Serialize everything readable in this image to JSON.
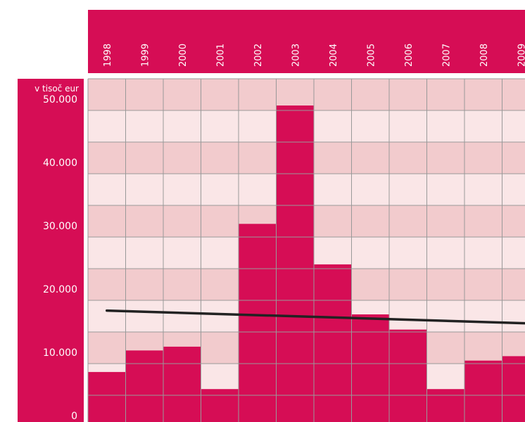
{
  "chart_data": {
    "type": "bar",
    "unit_label": "v tisoč eur",
    "categories": [
      "1998",
      "1999",
      "2000",
      "2001",
      "2002",
      "2003",
      "2004",
      "2005",
      "2006",
      "2007",
      "2008",
      "2009"
    ],
    "values": [
      7900,
      11300,
      11900,
      5200,
      31300,
      50000,
      24900,
      17000,
      14600,
      5200,
      9700,
      10400
    ],
    "trend_line": {
      "start": 17600,
      "end": 15600
    },
    "y_ticks": [
      "0",
      "10.000",
      "20.000",
      "30.000",
      "40.000",
      "50.000"
    ],
    "y_tick_values": [
      0,
      10000,
      20000,
      30000,
      40000,
      50000
    ],
    "ylim": [
      0,
      55000
    ],
    "grid": true,
    "colors": {
      "bar": "#d60d55",
      "band_dark": "#f2cbcd",
      "band_light": "#fae6e7",
      "grid": "#999999",
      "header": "#d60d55",
      "trend": "#222222"
    }
  }
}
